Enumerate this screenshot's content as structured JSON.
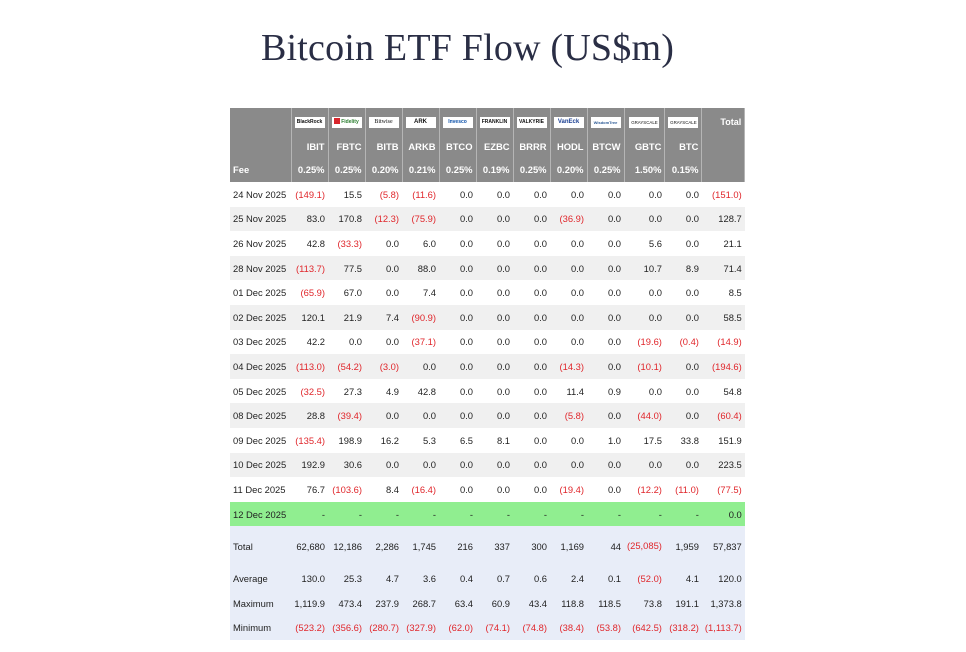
{
  "title": "Bitcoin ETF Flow (US$m)",
  "header": {
    "total_label": "Total",
    "fee_label": "Fee",
    "funds": [
      {
        "ticker": "IBIT",
        "fee": "0.25%",
        "logo": "BlackRock",
        "logo_icon": "blackrock-logo"
      },
      {
        "ticker": "FBTC",
        "fee": "0.25%",
        "logo": "Fidelity",
        "logo_icon": "fidelity-logo"
      },
      {
        "ticker": "BITB",
        "fee": "0.20%",
        "logo": "Bitwise",
        "logo_icon": "bitwise-logo"
      },
      {
        "ticker": "ARKB",
        "fee": "0.21%",
        "logo": "ARK",
        "logo_icon": "ark-logo"
      },
      {
        "ticker": "BTCO",
        "fee": "0.25%",
        "logo": "Invesco",
        "logo_icon": "invesco-logo"
      },
      {
        "ticker": "EZBC",
        "fee": "0.19%",
        "logo": "FRANKLIN",
        "logo_icon": "franklin-logo"
      },
      {
        "ticker": "BRRR",
        "fee": "0.25%",
        "logo": "VALKYRIE",
        "logo_icon": "valkyrie-logo"
      },
      {
        "ticker": "HODL",
        "fee": "0.20%",
        "logo": "VanEck",
        "logo_icon": "vaneck-logo"
      },
      {
        "ticker": "BTCW",
        "fee": "0.25%",
        "logo": "WisdomTree",
        "logo_icon": "wisdomtree-logo"
      },
      {
        "ticker": "GBTC",
        "fee": "1.50%",
        "logo": "GRAYSCALE",
        "logo_icon": "grayscale-logo"
      },
      {
        "ticker": "BTC",
        "fee": "0.15%",
        "logo": "GRAYSCALE",
        "logo_icon": "grayscale-logo"
      }
    ]
  },
  "rows": [
    {
      "date": "24 Nov 2025",
      "cells": [
        "(149.1)",
        "15.5",
        "(5.8)",
        "(11.6)",
        "0.0",
        "0.0",
        "0.0",
        "0.0",
        "0.0",
        "0.0",
        "0.0",
        "(151.0)"
      ]
    },
    {
      "date": "25 Nov 2025",
      "cells": [
        "83.0",
        "170.8",
        "(12.3)",
        "(75.9)",
        "0.0",
        "0.0",
        "0.0",
        "(36.9)",
        "0.0",
        "0.0",
        "0.0",
        "128.7"
      ]
    },
    {
      "date": "26 Nov 2025",
      "cells": [
        "42.8",
        "(33.3)",
        "0.0",
        "6.0",
        "0.0",
        "0.0",
        "0.0",
        "0.0",
        "0.0",
        "5.6",
        "0.0",
        "21.1"
      ]
    },
    {
      "date": "28 Nov 2025",
      "cells": [
        "(113.7)",
        "77.5",
        "0.0",
        "88.0",
        "0.0",
        "0.0",
        "0.0",
        "0.0",
        "0.0",
        "10.7",
        "8.9",
        "71.4"
      ]
    },
    {
      "date": "01 Dec 2025",
      "cells": [
        "(65.9)",
        "67.0",
        "0.0",
        "7.4",
        "0.0",
        "0.0",
        "0.0",
        "0.0",
        "0.0",
        "0.0",
        "0.0",
        "8.5"
      ]
    },
    {
      "date": "02 Dec 2025",
      "cells": [
        "120.1",
        "21.9",
        "7.4",
        "(90.9)",
        "0.0",
        "0.0",
        "0.0",
        "0.0",
        "0.0",
        "0.0",
        "0.0",
        "58.5"
      ]
    },
    {
      "date": "03 Dec 2025",
      "cells": [
        "42.2",
        "0.0",
        "0.0",
        "(37.1)",
        "0.0",
        "0.0",
        "0.0",
        "0.0",
        "0.0",
        "(19.6)",
        "(0.4)",
        "(14.9)"
      ]
    },
    {
      "date": "04 Dec 2025",
      "cells": [
        "(113.0)",
        "(54.2)",
        "(3.0)",
        "0.0",
        "0.0",
        "0.0",
        "0.0",
        "(14.3)",
        "0.0",
        "(10.1)",
        "0.0",
        "(194.6)"
      ]
    },
    {
      "date": "05 Dec 2025",
      "cells": [
        "(32.5)",
        "27.3",
        "4.9",
        "42.8",
        "0.0",
        "0.0",
        "0.0",
        "11.4",
        "0.9",
        "0.0",
        "0.0",
        "54.8"
      ]
    },
    {
      "date": "08 Dec 2025",
      "cells": [
        "28.8",
        "(39.4)",
        "0.0",
        "0.0",
        "0.0",
        "0.0",
        "0.0",
        "(5.8)",
        "0.0",
        "(44.0)",
        "0.0",
        "(60.4)"
      ]
    },
    {
      "date": "09 Dec 2025",
      "cells": [
        "(135.4)",
        "198.9",
        "16.2",
        "5.3",
        "6.5",
        "8.1",
        "0.0",
        "0.0",
        "1.0",
        "17.5",
        "33.8",
        "151.9"
      ]
    },
    {
      "date": "10 Dec 2025",
      "cells": [
        "192.9",
        "30.6",
        "0.0",
        "0.0",
        "0.0",
        "0.0",
        "0.0",
        "0.0",
        "0.0",
        "0.0",
        "0.0",
        "223.5"
      ]
    },
    {
      "date": "11 Dec 2025",
      "cells": [
        "76.7",
        "(103.6)",
        "8.4",
        "(16.4)",
        "0.0",
        "0.0",
        "0.0",
        "(19.4)",
        "0.0",
        "(12.2)",
        "(11.0)",
        "(77.5)"
      ]
    },
    {
      "date": "12 Dec 2025",
      "cells": [
        "-",
        "-",
        "-",
        "-",
        "-",
        "-",
        "-",
        "-",
        "-",
        "-",
        "-",
        "0.0"
      ],
      "highlight": true
    }
  ],
  "summary": [
    {
      "label": "Total",
      "cells": [
        "62,680",
        "12,186",
        "2,286",
        "1,745",
        "216",
        "337",
        "300",
        "1,169",
        "44",
        "(25,085)",
        "1,959",
        "57,837"
      ],
      "tall": true
    },
    {
      "label": "Average",
      "cells": [
        "130.0",
        "25.3",
        "4.7",
        "3.6",
        "0.4",
        "0.7",
        "0.6",
        "2.4",
        "0.1",
        "(52.0)",
        "4.1",
        "120.0"
      ]
    },
    {
      "label": "Maximum",
      "cells": [
        "1,119.9",
        "473.4",
        "237.9",
        "268.7",
        "63.4",
        "60.9",
        "43.4",
        "118.8",
        "118.5",
        "73.8",
        "191.1",
        "1,373.8"
      ]
    },
    {
      "label": "Minimum",
      "cells": [
        "(523.2)",
        "(356.6)",
        "(280.7)",
        "(327.9)",
        "(62.0)",
        "(74.1)",
        "(74.8)",
        "(38.4)",
        "(53.8)",
        "(642.5)",
        "(318.2)",
        "(1,113.7)"
      ]
    }
  ]
}
